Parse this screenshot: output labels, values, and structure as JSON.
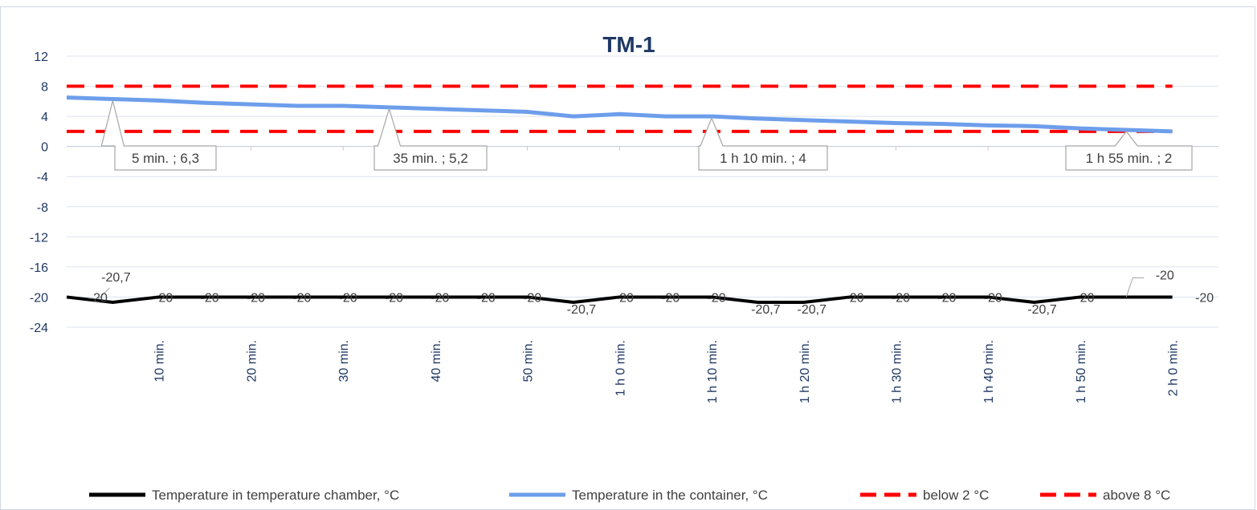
{
  "chart_data": {
    "type": "line",
    "title": "TM-1",
    "xlabel": "",
    "ylabel": "",
    "ylim": [
      -24,
      12
    ],
    "yticks": [
      12,
      8,
      4,
      0,
      -4,
      -8,
      -12,
      -16,
      -20,
      -24
    ],
    "grid": true,
    "legend_position": "bottom",
    "x_tick_labels": [
      "10 min.",
      "20 min.",
      "30 min.",
      "40 min.",
      "50 min.",
      "1 h 0 min.",
      "1 h 10 min.",
      "1 h 20 min.",
      "1 h 30 min.",
      "1 h 40 min.",
      "1 h 50 min.",
      "2 h 0 min."
    ],
    "x_minutes": [
      0,
      5,
      10,
      15,
      20,
      25,
      30,
      35,
      40,
      45,
      50,
      55,
      60,
      65,
      70,
      75,
      80,
      85,
      90,
      95,
      100,
      105,
      110,
      115,
      120
    ],
    "series": [
      {
        "name": "Temperature in temperature chamber, °C",
        "color": "#000000",
        "dash": "solid",
        "values": [
          -20,
          -20.7,
          -20,
          -20,
          -20,
          -20,
          -20,
          -20,
          -20,
          -20,
          -20,
          -20.7,
          -20,
          -20,
          -20,
          -20.7,
          -20.7,
          -20,
          -20,
          -20,
          -20,
          -20.7,
          -20,
          -20,
          -20
        ],
        "point_labels": [
          "",
          "-20,7",
          "-20",
          "-20",
          "-20",
          "-20",
          "-20",
          "-20",
          "-20",
          "-20",
          "-20",
          "-20,7",
          "-20",
          "-20",
          "-20",
          "-20,7",
          "-20,7",
          "-20",
          "-20",
          "-20",
          "-20",
          "-20,7",
          "-20",
          "-20",
          "-20"
        ]
      },
      {
        "name": "Temperature in the container, °C",
        "color": "#6d9eeb",
        "dash": "solid",
        "values": [
          6.5,
          6.3,
          6.1,
          5.8,
          5.6,
          5.4,
          5.4,
          5.2,
          5.0,
          4.8,
          4.6,
          4.0,
          4.3,
          4.0,
          4.0,
          3.7,
          3.5,
          3.3,
          3.1,
          3.0,
          2.8,
          2.7,
          2.4,
          2.2,
          2.0
        ],
        "callouts": [
          {
            "index": 1,
            "text": "5 min. ; 6,3"
          },
          {
            "index": 7,
            "text": "35 min. ; 5,2"
          },
          {
            "index": 14,
            "text": "1 h 10 min. ; 4"
          },
          {
            "index": 23,
            "text": "1 h 55 min. ; 2"
          }
        ]
      },
      {
        "name": "below 2 °C",
        "color": "#ff0000",
        "dash": "dashed",
        "values": [
          2,
          2
        ]
      },
      {
        "name": "above 8 °C",
        "color": "#ff0000",
        "dash": "dashed",
        "values": [
          8,
          8
        ]
      }
    ]
  }
}
